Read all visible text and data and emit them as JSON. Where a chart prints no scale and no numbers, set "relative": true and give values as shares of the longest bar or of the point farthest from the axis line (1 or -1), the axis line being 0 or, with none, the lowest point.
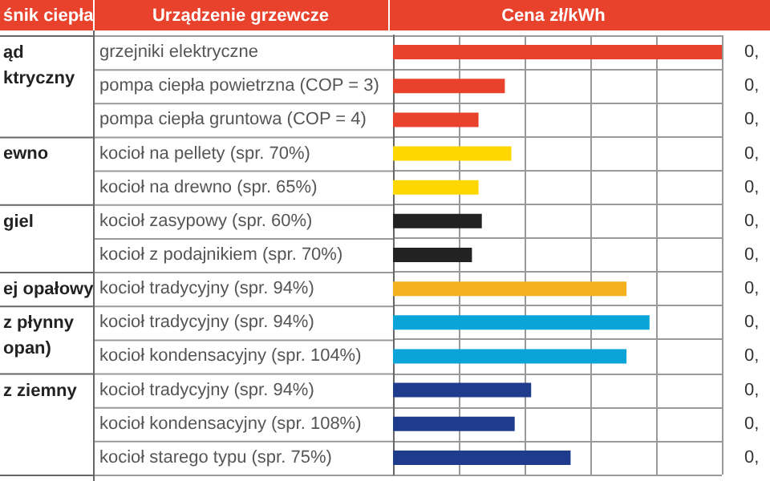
{
  "chart_data": {
    "type": "bar",
    "orientation": "horizontal",
    "relative": true,
    "grid": "x",
    "title": "Cena zł/kWh",
    "ylabel": "Urządzenie grzewcze",
    "categories": [
      "grzejniki elektryczne",
      "pompa ciepła powietrzna (COP = 3)",
      "pompa ciepła gruntowa (COP = 4)",
      "kocioł na pellety (spr. 70%)",
      "kocioł na drewno (spr. 65%)",
      "kocioł zasypowy (spr. 60%)",
      "kocioł z podajnikiem (spr. 70%)",
      "kocioł tradycyjny (spr. 94%)",
      "kocioł tradycyjny (spr. 94%)",
      "kocioł kondensacyjny (spr. 104%)",
      "kocioł tradycyjny (spr. 94%)",
      "kocioł kondensacyjny (spr. 108%)",
      "kocioł starego typu (spr. 75%)"
    ],
    "values": [
      1,
      0.34,
      0.26,
      0.36,
      0.26,
      0.27,
      0.24,
      0.71,
      0.78,
      0.71,
      0.42,
      0.37,
      0.54
    ],
    "colors": [
      "#e8412c",
      "#e8412c",
      "#e8412c",
      "#ffd700",
      "#ffd700",
      "#222222",
      "#222222",
      "#f5b01e",
      "#0aa5d8",
      "#0aa5d8",
      "#1f3c8c",
      "#1f3c8c",
      "#1f3c8c"
    ],
    "annotations": [
      "śnik ciepła",
      "ąd\nktryczny",
      "ewno",
      "giel",
      "ej opałowy",
      "z płynny\nopan)",
      "z ziemny",
      "0,",
      "0,",
      "0,",
      "0,",
      "0,",
      "0,",
      "0,",
      "0,",
      "0,",
      "0,",
      "0,",
      "0,",
      "0,"
    ]
  }
}
